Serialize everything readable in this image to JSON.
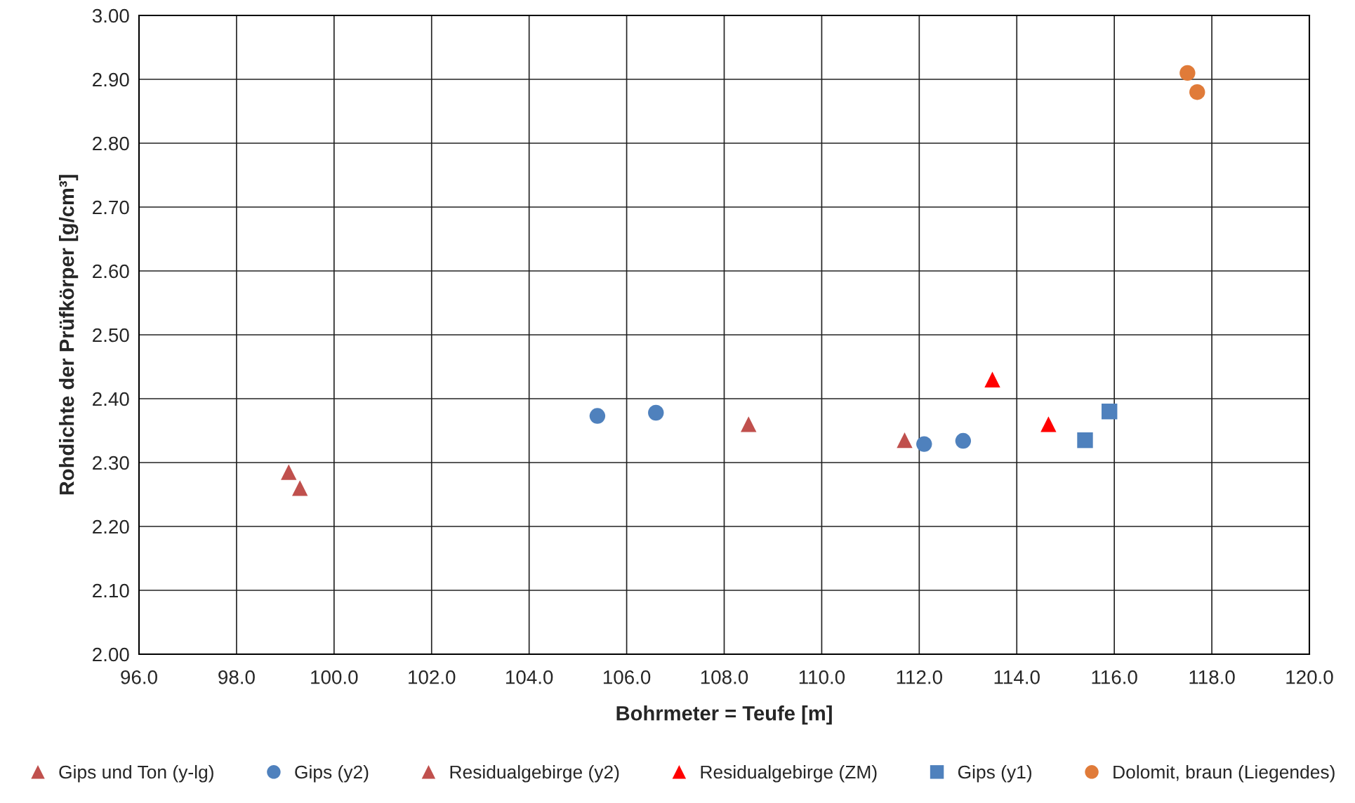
{
  "chart_data": {
    "type": "scatter",
    "xlabel": "Bohrmeter = Teufe [m]",
    "ylabel": "Rohdichte der Prüfkörper [g/cm³]",
    "xlim": [
      96,
      120
    ],
    "xticks": [
      {
        "value": 96,
        "label": "96.0"
      },
      {
        "value": 98,
        "label": "98.0"
      },
      {
        "value": 100,
        "label": "100.0"
      },
      {
        "value": 102,
        "label": "102.0"
      },
      {
        "value": 104,
        "label": "104.0"
      },
      {
        "value": 106,
        "label": "106.0"
      },
      {
        "value": 108,
        "label": "108.0"
      },
      {
        "value": 110,
        "label": "110.0"
      },
      {
        "value": 112,
        "label": "112.0"
      },
      {
        "value": 114,
        "label": "114.0"
      },
      {
        "value": 116,
        "label": "116.0"
      },
      {
        "value": 118,
        "label": "118.0"
      },
      {
        "value": 120,
        "label": "120.0"
      }
    ],
    "ylim": [
      2.0,
      3.0
    ],
    "yticks": [
      {
        "value": 2.0,
        "label": "2.00"
      },
      {
        "value": 2.1,
        "label": "2.10"
      },
      {
        "value": 2.2,
        "label": "2.20"
      },
      {
        "value": 2.3,
        "label": "2.30"
      },
      {
        "value": 2.4,
        "label": "2.40"
      },
      {
        "value": 2.5,
        "label": "2.50"
      },
      {
        "value": 2.6,
        "label": "2.60"
      },
      {
        "value": 2.7,
        "label": "2.70"
      },
      {
        "value": 2.8,
        "label": "2.80"
      },
      {
        "value": 2.9,
        "label": "2.90"
      },
      {
        "value": 3.0,
        "label": "3.00"
      }
    ],
    "grid": true,
    "legend": "bottom",
    "series": [
      {
        "name": "Gips und Ton (y-lg)",
        "color": "#c0504d",
        "marker": "triangle",
        "x": [
          99.07,
          99.3
        ],
        "values": [
          2.285,
          2.26
        ]
      },
      {
        "name": "Gips (y2)",
        "color": "#4f81bd",
        "marker": "circle",
        "x": [
          105.4,
          106.6,
          112.1,
          112.9
        ],
        "values": [
          2.373,
          2.378,
          2.329,
          2.334
        ]
      },
      {
        "name": "Residualgebirge (y2)",
        "color": "#c0504d",
        "marker": "triangle",
        "x": [
          108.5,
          111.7
        ],
        "values": [
          2.36,
          2.335
        ]
      },
      {
        "name": "Residualgebirge (ZM)",
        "color": "#ff0000",
        "marker": "triangle",
        "x": [
          113.5,
          114.65
        ],
        "values": [
          2.43,
          2.36
        ]
      },
      {
        "name": "Gips (y1)",
        "color": "#4f81bd",
        "marker": "square",
        "x": [
          115.4,
          115.9
        ],
        "values": [
          2.335,
          2.38
        ]
      },
      {
        "name": "Dolomit, braun (Liegendes)",
        "color": "#e07b39",
        "marker": "circle",
        "x": [
          117.5,
          117.7
        ],
        "values": [
          2.91,
          2.88
        ]
      }
    ]
  }
}
